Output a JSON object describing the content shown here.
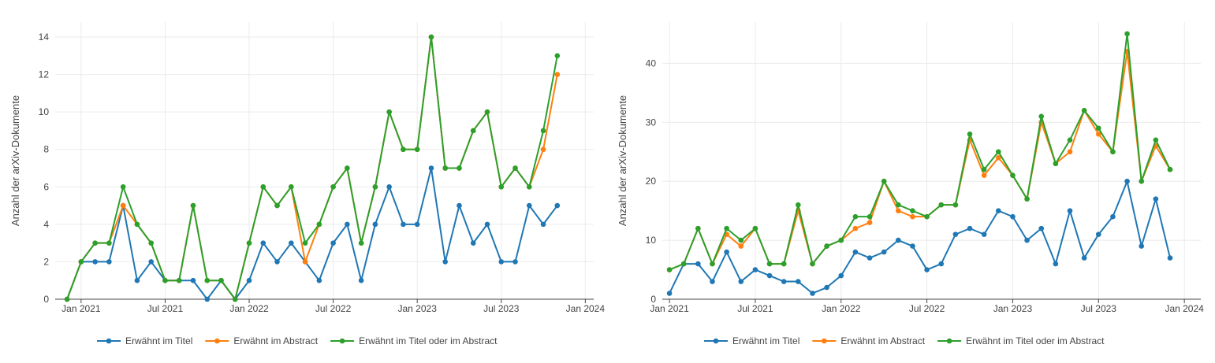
{
  "chart_data": [
    {
      "type": "line",
      "ylabel": "Anzahl der arXiv-Dokumente",
      "ylim": [
        0,
        14.8
      ],
      "yticks": [
        0,
        2,
        4,
        6,
        8,
        10,
        12,
        14
      ],
      "xticks": [
        "Jan 2021",
        "Jul 2021",
        "Jan 2022",
        "Jul 2022",
        "Jan 2023",
        "Jul 2023",
        "Jan 2024"
      ],
      "x": [
        "2020-12",
        "2021-01",
        "2021-02",
        "2021-03",
        "2021-04",
        "2021-05",
        "2021-06",
        "2021-07",
        "2021-08",
        "2021-09",
        "2021-10",
        "2021-11",
        "2021-12",
        "2022-01",
        "2022-02",
        "2022-03",
        "2022-04",
        "2022-05",
        "2022-06",
        "2022-07",
        "2022-08",
        "2022-09",
        "2022-10",
        "2022-11",
        "2022-12",
        "2023-01",
        "2023-02",
        "2023-03",
        "2023-04",
        "2023-05",
        "2023-06",
        "2023-07",
        "2023-08",
        "2023-09",
        "2023-10",
        "2023-11",
        "2023-12"
      ],
      "series": [
        {
          "name": "Erwähnt im Titel",
          "color": "#1f77b4",
          "values": [
            0,
            2,
            2,
            2,
            5,
            1,
            2,
            1,
            1,
            1,
            0,
            1,
            0,
            1,
            3,
            2,
            3,
            2,
            1,
            3,
            4,
            1,
            4,
            6,
            4,
            4,
            7,
            2,
            5,
            3,
            4,
            2,
            2,
            5,
            4,
            5,
            null
          ]
        },
        {
          "name": "Erwähnt im Abstract",
          "color": "#ff7f0e",
          "values": [
            0,
            2,
            3,
            3,
            5,
            4,
            3,
            1,
            1,
            5,
            1,
            1,
            0,
            3,
            6,
            5,
            6,
            2,
            4,
            6,
            7,
            3,
            6,
            10,
            8,
            8,
            14,
            7,
            7,
            9,
            10,
            6,
            7,
            6,
            8,
            12,
            null
          ]
        },
        {
          "name": "Erwähnt im Titel oder im Abstract",
          "color": "#2ca02c",
          "values": [
            0,
            2,
            3,
            3,
            6,
            4,
            3,
            1,
            1,
            5,
            1,
            1,
            0,
            3,
            6,
            5,
            6,
            3,
            4,
            6,
            7,
            3,
            6,
            10,
            8,
            8,
            14,
            7,
            7,
            9,
            10,
            6,
            7,
            6,
            9,
            13,
            null
          ]
        }
      ]
    },
    {
      "type": "line",
      "ylabel": "Anzahl der arXiv-Dokumente",
      "ylim": [
        0,
        47
      ],
      "yticks": [
        0,
        10,
        20,
        30,
        40
      ],
      "xticks": [
        "Jan 2021",
        "Jul 2021",
        "Jan 2022",
        "Jul 2022",
        "Jan 2023",
        "Jul 2023",
        "Jan 2024"
      ],
      "x": [
        "2021-01",
        "2021-02",
        "2021-03",
        "2021-04",
        "2021-05",
        "2021-06",
        "2021-07",
        "2021-08",
        "2021-09",
        "2021-10",
        "2021-11",
        "2021-12",
        "2022-01",
        "2022-02",
        "2022-03",
        "2022-04",
        "2022-05",
        "2022-06",
        "2022-07",
        "2022-08",
        "2022-09",
        "2022-10",
        "2022-11",
        "2022-12",
        "2023-01",
        "2023-02",
        "2023-03",
        "2023-04",
        "2023-05",
        "2023-06",
        "2023-07",
        "2023-08",
        "2023-09",
        "2023-10",
        "2023-11",
        "2023-12"
      ],
      "series": [
        {
          "name": "Erwähnt im Titel",
          "color": "#1f77b4",
          "values": [
            1,
            6,
            6,
            3,
            8,
            3,
            5,
            4,
            3,
            3,
            1,
            2,
            4,
            8,
            7,
            8,
            10,
            9,
            5,
            6,
            11,
            12,
            11,
            15,
            14,
            10,
            12,
            6,
            15,
            7,
            11,
            14,
            20,
            9,
            17,
            7
          ]
        },
        {
          "name": "Erwähnt im Abstract",
          "color": "#ff7f0e",
          "values": [
            5,
            6,
            12,
            6,
            11,
            9,
            12,
            6,
            6,
            15,
            6,
            9,
            10,
            12,
            13,
            20,
            15,
            14,
            14,
            16,
            16,
            27,
            21,
            24,
            21,
            17,
            30,
            23,
            25,
            32,
            28,
            25,
            42,
            20,
            26,
            22
          ]
        },
        {
          "name": "Erwähnt im Titel oder im Abstract",
          "color": "#2ca02c",
          "values": [
            5,
            6,
            12,
            6,
            12,
            10,
            12,
            6,
            6,
            16,
            6,
            9,
            10,
            14,
            14,
            20,
            16,
            15,
            14,
            16,
            16,
            28,
            22,
            25,
            21,
            17,
            31,
            23,
            27,
            32,
            29,
            25,
            45,
            20,
            27,
            22
          ]
        }
      ]
    }
  ]
}
